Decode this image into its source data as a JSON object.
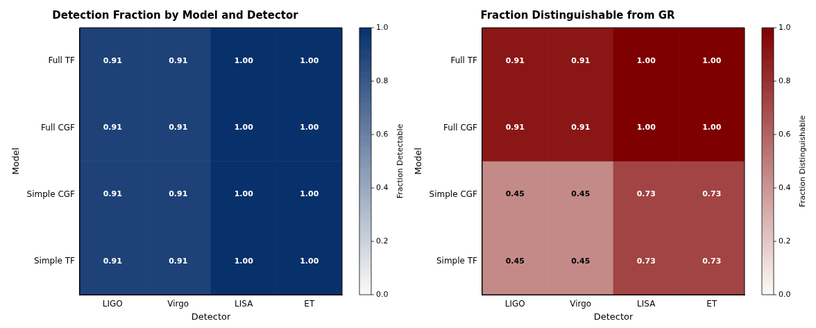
{
  "chart_data": [
    {
      "type": "heatmap",
      "title": "Detection Fraction by Model and Detector",
      "xlabel": "Detector",
      "ylabel": "Model",
      "clabel": "Fraction Detectable",
      "color": "#08306b",
      "categories": [
        "LIGO",
        "Virgo",
        "LISA",
        "ET"
      ],
      "y_categories": [
        "Full TF",
        "Full CGF",
        "Simple CGF",
        "Simple TF"
      ],
      "cells": [
        [
          0.91,
          0.91,
          1.0,
          1.0
        ],
        [
          0.91,
          0.91,
          1.0,
          1.0
        ],
        [
          0.91,
          0.91,
          1.0,
          1.0
        ],
        [
          0.91,
          0.91,
          1.0,
          1.0
        ]
      ],
      "cell_labels": [
        [
          "0.91",
          "0.91",
          "1.00",
          "1.00"
        ],
        [
          "0.91",
          "0.91",
          "1.00",
          "1.00"
        ],
        [
          "0.91",
          "0.91",
          "1.00",
          "1.00"
        ],
        [
          "0.91",
          "0.91",
          "1.00",
          "1.00"
        ]
      ],
      "data_labels": true,
      "clim": [
        0,
        1
      ],
      "cticks": [
        {
          "value": 0,
          "label": "0.0"
        },
        {
          "value": 0.2,
          "label": "0.2"
        },
        {
          "value": 0.4,
          "label": "0.4"
        },
        {
          "value": 0.6,
          "label": "0.6"
        },
        {
          "value": 0.8,
          "label": "0.8"
        },
        {
          "value": 1,
          "label": "1.0"
        }
      ]
    },
    {
      "type": "heatmap",
      "title": "Fraction Distinguishable from GR",
      "xlabel": "Detector",
      "ylabel": "Model",
      "clabel": "Fraction Distinguishable",
      "color": "#7f0000",
      "categories": [
        "LIGO",
        "Virgo",
        "LISA",
        "ET"
      ],
      "y_categories": [
        "Full TF",
        "Full CGF",
        "Simple CGF",
        "Simple TF"
      ],
      "cells": [
        [
          0.91,
          0.91,
          1.0,
          1.0
        ],
        [
          0.91,
          0.91,
          1.0,
          1.0
        ],
        [
          0.45,
          0.45,
          0.73,
          0.73
        ],
        [
          0.45,
          0.45,
          0.73,
          0.73
        ]
      ],
      "cell_labels": [
        [
          "0.91",
          "0.91",
          "1.00",
          "1.00"
        ],
        [
          "0.91",
          "0.91",
          "1.00",
          "1.00"
        ],
        [
          "0.45",
          "0.45",
          "0.73",
          "0.73"
        ],
        [
          "0.45",
          "0.45",
          "0.73",
          "0.73"
        ]
      ],
      "data_labels": true,
      "clim": [
        0,
        1
      ],
      "cticks": [
        {
          "value": 0,
          "label": "0.0"
        },
        {
          "value": 0.2,
          "label": "0.2"
        },
        {
          "value": 0.4,
          "label": "0.4"
        },
        {
          "value": 0.6,
          "label": "0.6"
        },
        {
          "value": 0.8,
          "label": "0.8"
        },
        {
          "value": 1,
          "label": "1.0"
        }
      ]
    }
  ]
}
